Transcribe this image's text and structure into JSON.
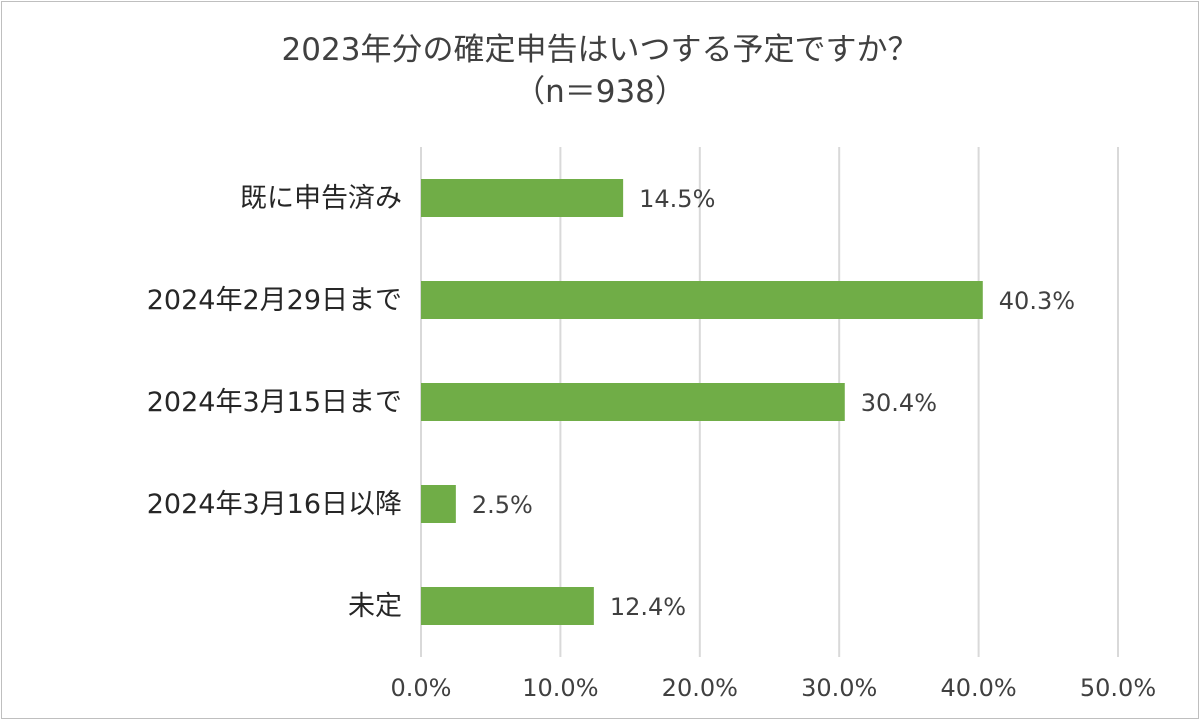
{
  "chart_data": {
    "type": "bar",
    "orientation": "horizontal",
    "title": "2023年分の確定申告はいつする予定ですか？",
    "subtitle": "（n＝938）",
    "categories": [
      "既に申告済み",
      "2024年2月29日まで",
      "2024年3月15日まで",
      "2024年3月16日以降",
      "未定"
    ],
    "values": [
      14.5,
      40.3,
      30.4,
      2.5,
      12.4
    ],
    "value_labels": [
      "14.5%",
      "40.3%",
      "30.4%",
      "2.5%",
      "12.4%"
    ],
    "xlim": [
      0,
      50
    ],
    "x_ticks": [
      0,
      10,
      20,
      30,
      40,
      50
    ],
    "x_tick_labels": [
      "0.0%",
      "10.0%",
      "20.0%",
      "30.0%",
      "40.0%",
      "50.0%"
    ],
    "xlabel": "",
    "ylabel": "",
    "grid": "vertical",
    "legend": "none",
    "bar_color": "#70ad47"
  }
}
